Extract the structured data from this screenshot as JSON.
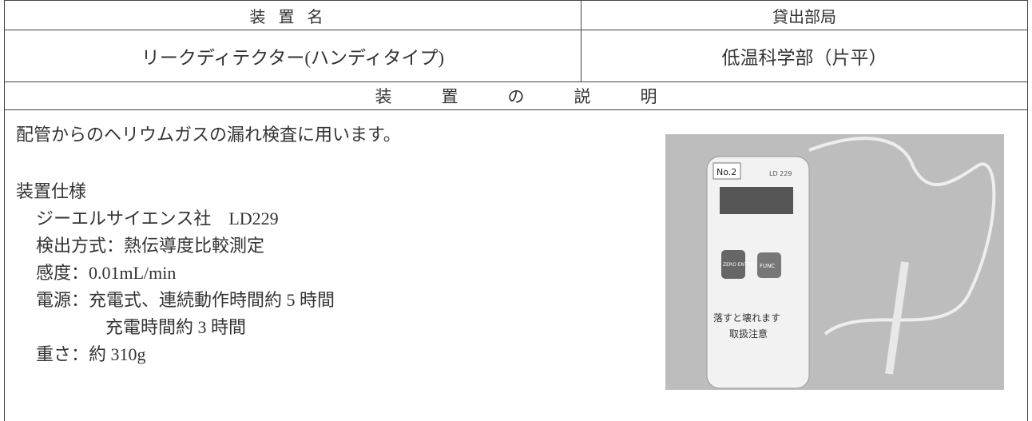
{
  "header": {
    "name_label": "装置名",
    "dept_label": "貸出部局"
  },
  "device": {
    "name": "リークディテクター(ハンディタイプ)",
    "dept": "低温科学部（片平）"
  },
  "description": {
    "heading": "装置の説明",
    "summary": "配管からのヘリウムガスの漏れ検査に用います。",
    "spec_title": "装置仕様",
    "specs": [
      "ジーエルサイエンス社　LD229",
      "検出方式：熱伝導度比較測定",
      "感度：0.01mL/min",
      "電源：充電式、連続動作時間約 5 時間",
      "充電時間約 3 時間",
      "重さ：約 310g"
    ]
  },
  "photo": {
    "labels": [
      "No.2",
      "LD 229",
      "ZERO ENTER",
      "FUNC",
      "落すと壊れます",
      "取扱注意"
    ]
  }
}
